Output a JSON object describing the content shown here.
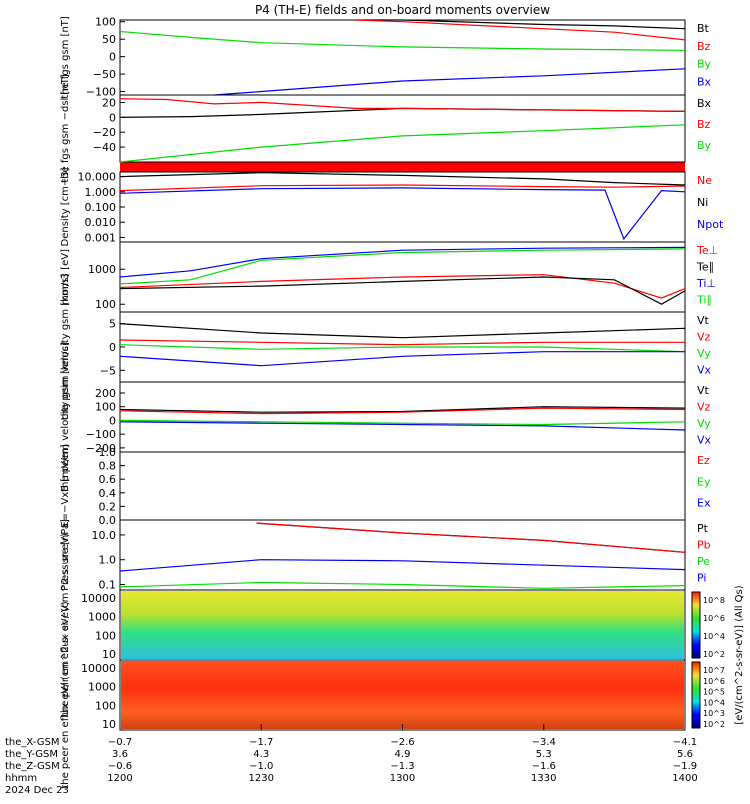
{
  "title": "P4 (TH-E) fields and on-board moments overview",
  "colors": {
    "black": "#000000",
    "red": "#ff0000",
    "green": "#00dd00",
    "blue": "#0000ee"
  },
  "chart_data": [
    {
      "type": "line",
      "panel": "fgs_gsm",
      "ylabel": [
        "the",
        "fgs",
        "gsm",
        "[nT]"
      ],
      "yticks": [
        "100",
        "50",
        "0",
        "−50",
        "−100"
      ],
      "ylim": [
        -110,
        105
      ],
      "series": [
        {
          "name": "Bt",
          "color": "black",
          "x": [
            1200,
            1230,
            1250,
            1300,
            1330,
            1345,
            1400
          ],
          "values": [
            null,
            null,
            118,
            105,
            92,
            88,
            80
          ]
        },
        {
          "name": "Bz",
          "color": "red",
          "x": [
            1200,
            1250,
            1300,
            1330,
            1345,
            1400
          ],
          "values": [
            null,
            118,
            100,
            80,
            70,
            48
          ]
        },
        {
          "name": "By",
          "color": "green",
          "x": [
            1200,
            1215,
            1230,
            1300,
            1330,
            1400
          ],
          "values": [
            72,
            55,
            40,
            28,
            22,
            18
          ]
        },
        {
          "name": "Bx",
          "color": "blue",
          "x": [
            1200,
            1220,
            1230,
            1300,
            1330,
            1400
          ],
          "values": [
            null,
            -115,
            -100,
            -70,
            -55,
            -35
          ]
        }
      ]
    },
    {
      "type": "line",
      "panel": "fgs_gse_dsl",
      "ylabel": [
        "the",
        "fgs",
        "gsm",
        "−dsl",
        "[nT]"
      ],
      "yticks": [
        "20",
        "0",
        "−20",
        "−40"
      ],
      "ylim": [
        -60,
        30
      ],
      "series": [
        {
          "name": "Bx",
          "color": "black",
          "x": [
            1200,
            1215,
            1230,
            1245,
            1300,
            1330,
            1400
          ],
          "values": [
            0,
            1,
            4,
            8,
            12,
            10,
            8
          ]
        },
        {
          "name": "Bz",
          "color": "red",
          "x": [
            1200,
            1210,
            1220,
            1230,
            1250,
            1300,
            1330,
            1400
          ],
          "values": [
            25,
            24,
            18,
            20,
            12,
            12,
            10,
            8
          ]
        },
        {
          "name": "By",
          "color": "green",
          "x": [
            1200,
            1230,
            1300,
            1330,
            1400
          ],
          "values": [
            -60,
            -40,
            -25,
            -18,
            -10
          ]
        }
      ]
    },
    {
      "type": "line",
      "panel": "density",
      "ylabel": [
        "Density",
        "[cm−3]"
      ],
      "log": true,
      "yticks": [
        "10.000",
        "1.000",
        "0.100",
        "0.010",
        "0.001"
      ],
      "ylim": [
        0.0005,
        20
      ],
      "series": [
        {
          "name": "Ne",
          "color": "red",
          "x": [
            1200,
            1230,
            1300,
            1330,
            1345,
            1400
          ],
          "values": [
            1.2,
            2.5,
            2.8,
            2.2,
            2.0,
            2.4
          ]
        },
        {
          "name": "Ni",
          "color": "black",
          "x": [
            1200,
            1230,
            1300,
            1330,
            1345,
            1400
          ],
          "values": [
            10,
            18,
            12,
            7,
            4,
            2.8
          ]
        },
        {
          "name": "Npot",
          "color": "blue",
          "x": [
            1200,
            1230,
            1300,
            1330,
            1343,
            1347,
            1355,
            1400
          ],
          "values": [
            0.8,
            1.6,
            1.8,
            1.4,
            1.3,
            0.0008,
            1.2,
            1.0
          ]
        }
      ]
    },
    {
      "type": "line",
      "panel": "moments_temp",
      "ylabel": [
        "mom3",
        "[eV]"
      ],
      "log": true,
      "yticks": [
        "1000",
        "100"
      ],
      "ylim": [
        60,
        6000
      ],
      "series": [
        {
          "name": "Te⊥",
          "color": "red",
          "x": [
            1200,
            1230,
            1300,
            1330,
            1345,
            1355,
            1400
          ],
          "values": [
            300,
            450,
            600,
            700,
            400,
            150,
            280
          ]
        },
        {
          "name": "Te∥",
          "color": "black",
          "x": [
            1200,
            1230,
            1300,
            1330,
            1345,
            1355,
            1400
          ],
          "values": [
            280,
            330,
            450,
            600,
            500,
            100,
            240
          ]
        },
        {
          "name": "Ti⊥",
          "color": "blue",
          "x": [
            1200,
            1215,
            1230,
            1300,
            1330,
            1400
          ],
          "values": [
            600,
            900,
            2000,
            3500,
            4000,
            4200
          ]
        },
        {
          "name": "Ti∥",
          "color": "green",
          "x": [
            1200,
            1215,
            1230,
            1300,
            1330,
            1400
          ],
          "values": [
            380,
            500,
            1800,
            3000,
            3500,
            3800
          ]
        }
      ]
    },
    {
      "type": "line",
      "panel": "peim_velocity",
      "ylabel": [
        "the",
        "peim",
        "velocity",
        "gsm",
        "[km/s]"
      ],
      "yticks": [
        "5",
        "0",
        "−5"
      ],
      "ylim": [
        -7.5,
        7.5
      ],
      "series": [
        {
          "name": "Vt",
          "color": "black",
          "x": [
            1200,
            1230,
            1300,
            1330,
            1400
          ],
          "values": [
            5,
            3,
            2,
            3,
            4
          ]
        },
        {
          "name": "Vz",
          "color": "red",
          "x": [
            1200,
            1230,
            1300,
            1330,
            1400
          ],
          "values": [
            1.5,
            1,
            0.5,
            1,
            1
          ]
        },
        {
          "name": "Vy",
          "color": "green",
          "x": [
            1200,
            1230,
            1300,
            1330,
            1400
          ],
          "values": [
            0.5,
            -0.5,
            0,
            0,
            -1
          ]
        },
        {
          "name": "Vx",
          "color": "blue",
          "x": [
            1200,
            1230,
            1300,
            1330,
            1400
          ],
          "values": [
            -2,
            -4,
            -2,
            -1,
            -1
          ]
        }
      ]
    },
    {
      "type": "line",
      "panel": "peem_velocity",
      "ylabel": [
        "the",
        "peem",
        "velocity",
        "gsm",
        "[km/s]"
      ],
      "yticks": [
        "200",
        "100",
        "0",
        "−100",
        "−200"
      ],
      "ylim": [
        -230,
        280
      ],
      "series": [
        {
          "name": "Vt",
          "color": "black",
          "x": [
            1200,
            1230,
            1300,
            1330,
            1400
          ],
          "values": [
            80,
            60,
            65,
            100,
            90
          ]
        },
        {
          "name": "Vz",
          "color": "red",
          "x": [
            1200,
            1230,
            1300,
            1330,
            1400
          ],
          "values": [
            70,
            50,
            60,
            90,
            80
          ]
        },
        {
          "name": "Vy",
          "color": "green",
          "x": [
            1200,
            1230,
            1300,
            1330,
            1400
          ],
          "values": [
            0,
            -10,
            -20,
            -30,
            -10
          ]
        },
        {
          "name": "Vx",
          "color": "blue",
          "x": [
            1200,
            1230,
            1300,
            1330,
            1400
          ],
          "values": [
            -10,
            -20,
            -30,
            -40,
            -70
          ]
        }
      ]
    },
    {
      "type": "line",
      "panel": "efield",
      "ylabel": [
        "E=−VxB",
        "[mV/m]"
      ],
      "yticks": [
        "1.0",
        "0.8",
        "0.6",
        "0.4",
        "0.2",
        "0.0"
      ],
      "ylim": [
        0,
        1
      ],
      "series": [
        {
          "name": "Ez",
          "color": "red",
          "x": [],
          "values": []
        },
        {
          "name": "Ey",
          "color": "green",
          "x": [],
          "values": []
        },
        {
          "name": "Ex",
          "color": "blue",
          "x": [],
          "values": []
        }
      ]
    },
    {
      "type": "line",
      "panel": "pressure",
      "ylabel": [
        "Pressure",
        "[nPa]"
      ],
      "log": true,
      "yticks": [
        "10.0",
        "1.0",
        "0.1"
      ],
      "ylim": [
        0.06,
        40
      ],
      "series": [
        {
          "name": "Pt",
          "color": "black",
          "x": [
            1229,
            1300,
            1330,
            1400
          ],
          "values": [
            30,
            12,
            6,
            2
          ]
        },
        {
          "name": "Pb",
          "color": "red",
          "x": [
            1229,
            1300,
            1330,
            1400
          ],
          "values": [
            30,
            12,
            6,
            2
          ]
        },
        {
          "name": "Pe",
          "color": "green",
          "x": [
            1200,
            1230,
            1300,
            1330,
            1400
          ],
          "values": [
            0.08,
            0.12,
            0.1,
            0.07,
            0.09
          ]
        },
        {
          "name": "Pi",
          "color": "blue",
          "x": [
            1200,
            1230,
            1300,
            1330,
            1400
          ],
          "values": [
            0.35,
            1.0,
            0.9,
            0.6,
            0.4
          ]
        }
      ]
    },
    {
      "type": "heatmap",
      "panel": "peir_spectrogram",
      "ylabel": [
        "the",
        "peir",
        "en",
        "eflux",
        "eV/",
        "(cm^2-s-",
        "sr-eV)"
      ],
      "yticks": [
        "10000",
        "1000",
        "100",
        "10"
      ],
      "colorbar": [
        "10^8",
        "10^6",
        "10^4",
        "10^2"
      ]
    },
    {
      "type": "heatmap",
      "panel": "peer_spectrogram",
      "ylabel": [
        "the",
        "peer",
        "en",
        "eflux",
        "eV/",
        "(cm^2-s-",
        "sr-eV)"
      ],
      "yticks": [
        "10000",
        "1000",
        "100",
        "10"
      ],
      "colorbar": [
        "10^7",
        "10^6",
        "10^5",
        "10^4",
        "10^3",
        "10^2"
      ]
    }
  ],
  "colorbar_title": "[eV/(cm^2-s-sr-eV)] (All Qs)",
  "xaxis": {
    "hhmm": [
      "1200",
      "1230",
      "1300",
      "1330",
      "1400"
    ],
    "rows": [
      {
        "label": "the_X-GSM",
        "values": [
          "−0.7",
          "−1.7",
          "−2.6",
          "−3.4",
          "−4.1"
        ]
      },
      {
        "label": "the_Y-GSM",
        "values": [
          "3.6",
          "4.3",
          "4.9",
          "5.3",
          "5.6"
        ]
      },
      {
        "label": "the_Z-GSM",
        "values": [
          "−0.6",
          "−1.0",
          "−1.3",
          "−1.6",
          "−1.9"
        ]
      },
      {
        "label": "hhmm",
        "values": [
          "1200",
          "1230",
          "1300",
          "1330",
          "1400"
        ]
      }
    ],
    "date": "2024 Dec 23"
  }
}
